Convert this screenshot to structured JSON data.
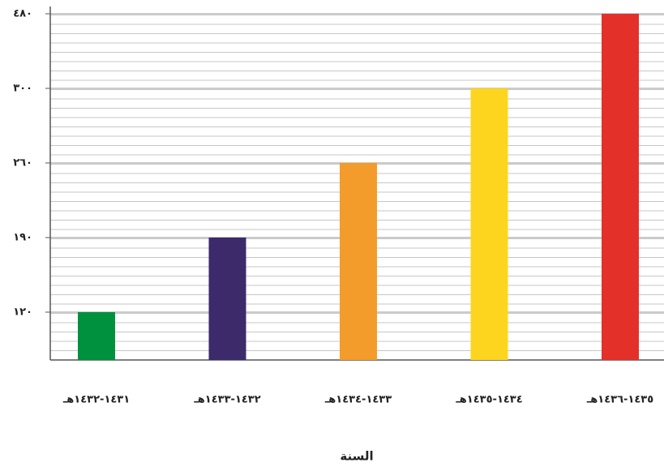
{
  "chart_data": {
    "type": "bar",
    "x_label": "السنة",
    "categories": [
      "١٤٣١-١٤٣٢هـ",
      "١٤٣٢-١٤٣٣هـ",
      "١٤٣٣-١٤٣٤هـ",
      "١٤٣٤-١٤٣٥هـ",
      "١٤٣٥-١٤٣٦هـ"
    ],
    "values": [
      120,
      190,
      260,
      300,
      480
    ],
    "colors": [
      "#00913f",
      "#3d2a6b",
      "#f39c2b",
      "#fdd51f",
      "#e3312a"
    ],
    "ylim": [
      0,
      480
    ],
    "yticks": [
      {
        "value": 120,
        "label": "١٢٠"
      },
      {
        "value": 190,
        "label": "١٩٠"
      },
      {
        "value": 260,
        "label": "٢٦٠"
      },
      {
        "value": 300,
        "label": "٣٠٠"
      },
      {
        "value": 480,
        "label": "٤٨٠"
      }
    ],
    "grid": true
  }
}
